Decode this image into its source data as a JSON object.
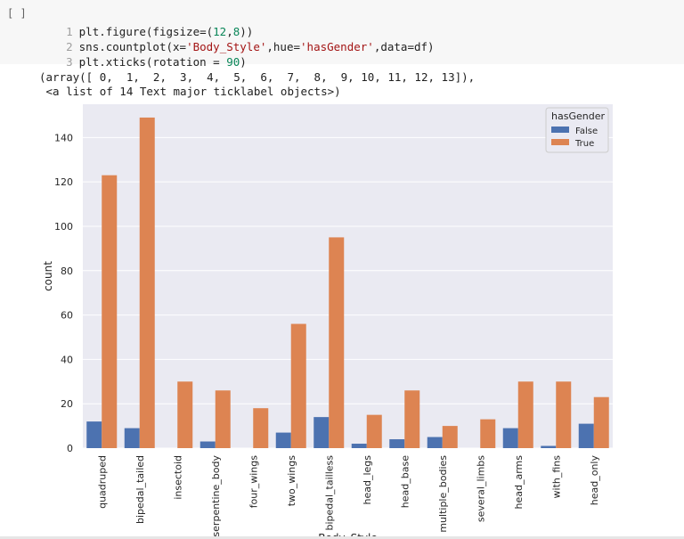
{
  "cell": {
    "run_label": "[ ]",
    "code_lines": [
      {
        "num": "1",
        "pre": "plt.figure(figsize=(",
        "n1": "12",
        "mid": ",",
        "n2": "8",
        "post": "))"
      },
      {
        "num": "2",
        "pre": "sns.countplot(x=",
        "s1": "'Body_Style'",
        "m1": ",hue=",
        "s2": "'hasGender'",
        "post": ",data=df)"
      },
      {
        "num": "3",
        "pre": "plt.xticks(rotation = ",
        "n1": "90",
        "post": ")"
      }
    ]
  },
  "output": {
    "line1": "(array([ 0,  1,  2,  3,  4,  5,  6,  7,  8,  9, 10, 11, 12, 13]),",
    "line2": " <a list of 14 Text major ticklabel objects>)"
  },
  "colors": {
    "false": "#4c72b0",
    "true": "#dd8452",
    "plot_bg": "#eaeaf2",
    "grid": "#ffffff",
    "text": "#262626"
  },
  "chart_data": {
    "type": "bar",
    "xlabel": "Body_Style",
    "ylabel": "count",
    "ylim": [
      0,
      155
    ],
    "yticks": [
      0,
      20,
      40,
      60,
      80,
      100,
      120,
      140
    ],
    "grid": true,
    "legend_position": "top-right",
    "legend_title": "hasGender",
    "categories": [
      "quadruped",
      "bipedal_tailed",
      "insectoid",
      "serpentine_body",
      "four_wings",
      "two_wings",
      "bipedal_tailless",
      "head_legs",
      "head_base",
      "multiple_bodies",
      "several_limbs",
      "head_arms",
      "with_fins",
      "head_only"
    ],
    "series": [
      {
        "name": "False",
        "values": [
          12,
          9,
          0,
          3,
          0,
          7,
          14,
          2,
          4,
          5,
          0,
          9,
          1,
          11
        ]
      },
      {
        "name": "True",
        "values": [
          123,
          149,
          30,
          26,
          18,
          56,
          95,
          15,
          26,
          10,
          13,
          30,
          30,
          23
        ]
      }
    ]
  }
}
